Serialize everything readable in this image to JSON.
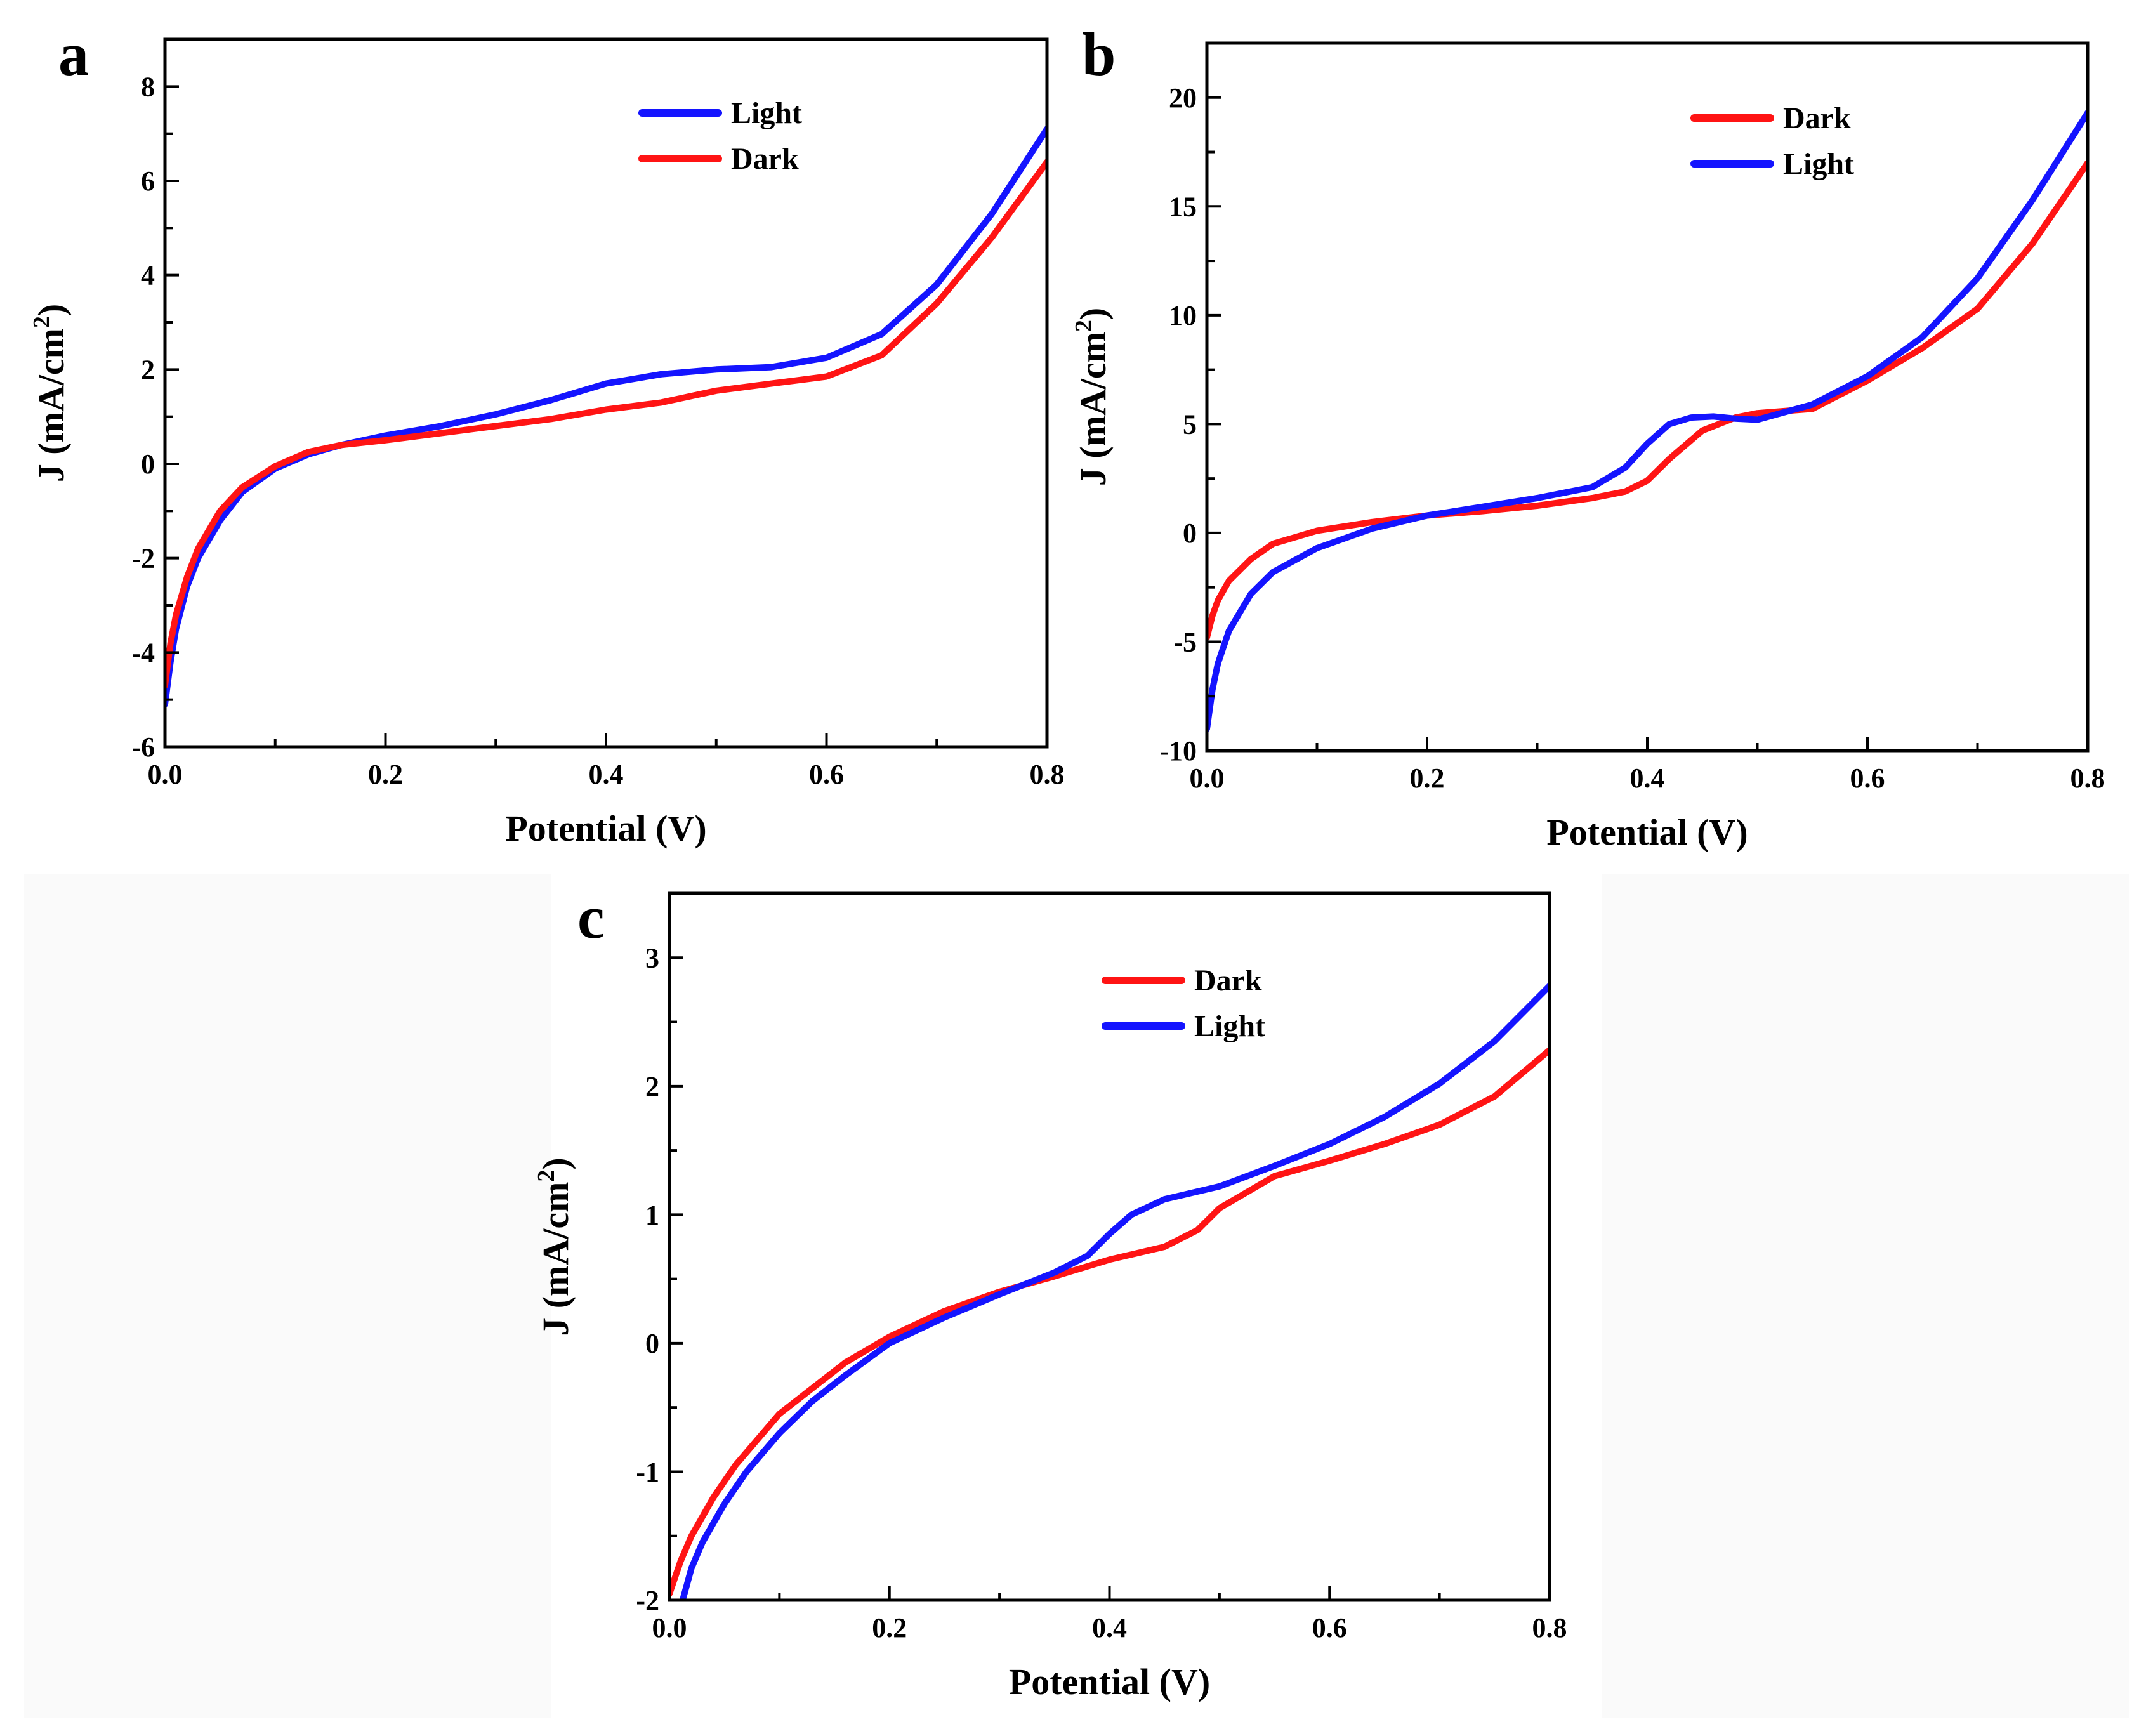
{
  "figure": {
    "background_panel_color": "#fafafa"
  },
  "chart_data": [
    {
      "id": "a",
      "panel_label": "a",
      "type": "line",
      "title": "",
      "xlabel": "Potential (V)",
      "ylabel_main": "J (mA/cm",
      "ylabel_sup": "2",
      "ylabel_close": ")",
      "xlim": [
        0.0,
        0.8
      ],
      "ylim": [
        -6,
        9
      ],
      "xticks": [
        0.0,
        0.2,
        0.4,
        0.6,
        0.8
      ],
      "xtick_labels": [
        "0.0",
        "0.2",
        "0.4",
        "0.6",
        "0.8"
      ],
      "yticks": [
        -6,
        -4,
        -2,
        0,
        2,
        4,
        6,
        8
      ],
      "ytick_labels": [
        "-6",
        "-4",
        "-2",
        "0",
        "2",
        "4",
        "6",
        "8"
      ],
      "legend_position": "top-right",
      "series": [
        {
          "name": "Light",
          "color": "#1414ff",
          "x": [
            0.0,
            0.005,
            0.01,
            0.02,
            0.03,
            0.05,
            0.07,
            0.1,
            0.13,
            0.16,
            0.2,
            0.25,
            0.3,
            0.35,
            0.4,
            0.45,
            0.5,
            0.55,
            0.6,
            0.65,
            0.7,
            0.75,
            0.8
          ],
          "y": [
            -5.1,
            -4.2,
            -3.5,
            -2.6,
            -2.0,
            -1.2,
            -0.6,
            -0.1,
            0.2,
            0.4,
            0.6,
            0.8,
            1.05,
            1.35,
            1.7,
            1.9,
            2.0,
            2.05,
            2.25,
            2.75,
            3.8,
            5.3,
            7.1
          ]
        },
        {
          "name": "Dark",
          "color": "#ff1414",
          "x": [
            0.0,
            0.005,
            0.01,
            0.02,
            0.03,
            0.05,
            0.07,
            0.1,
            0.13,
            0.16,
            0.2,
            0.25,
            0.3,
            0.35,
            0.4,
            0.45,
            0.5,
            0.55,
            0.6,
            0.65,
            0.7,
            0.75,
            0.8
          ],
          "y": [
            -4.7,
            -3.8,
            -3.2,
            -2.4,
            -1.8,
            -1.0,
            -0.5,
            -0.05,
            0.25,
            0.4,
            0.5,
            0.65,
            0.8,
            0.95,
            1.15,
            1.3,
            1.55,
            1.7,
            1.85,
            2.3,
            3.4,
            4.8,
            6.4
          ]
        }
      ]
    },
    {
      "id": "b",
      "panel_label": "b",
      "type": "line",
      "title": "",
      "xlabel": "Potential (V)",
      "ylabel_main": "J (mA/cm",
      "ylabel_sup": "2",
      "ylabel_close": ")",
      "xlim": [
        0.0,
        0.8
      ],
      "ylim": [
        -10,
        22.5
      ],
      "xticks": [
        0.0,
        0.2,
        0.4,
        0.6,
        0.8
      ],
      "xtick_labels": [
        "0.0",
        "0.2",
        "0.4",
        "0.6",
        "0.8"
      ],
      "yticks": [
        -10,
        -5,
        0,
        5,
        10,
        15,
        20
      ],
      "ytick_labels": [
        "-10",
        "-5",
        "0",
        "5",
        "10",
        "15",
        "20"
      ],
      "legend_position": "top-right",
      "series": [
        {
          "name": "Dark",
          "color": "#ff1414",
          "x": [
            0.0,
            0.005,
            0.01,
            0.02,
            0.04,
            0.06,
            0.1,
            0.15,
            0.2,
            0.25,
            0.3,
            0.35,
            0.38,
            0.4,
            0.42,
            0.45,
            0.48,
            0.5,
            0.55,
            0.6,
            0.65,
            0.7,
            0.75,
            0.8
          ],
          "y": [
            -4.8,
            -3.8,
            -3.1,
            -2.2,
            -1.2,
            -0.5,
            0.1,
            0.5,
            0.8,
            1.0,
            1.25,
            1.6,
            1.9,
            2.4,
            3.4,
            4.7,
            5.3,
            5.5,
            5.7,
            7.0,
            8.5,
            10.3,
            13.3,
            17.0
          ]
        },
        {
          "name": "Light",
          "color": "#1414ff",
          "x": [
            0.0,
            0.005,
            0.01,
            0.02,
            0.04,
            0.06,
            0.1,
            0.15,
            0.2,
            0.25,
            0.3,
            0.35,
            0.38,
            0.4,
            0.42,
            0.44,
            0.46,
            0.48,
            0.5,
            0.55,
            0.6,
            0.65,
            0.7,
            0.75,
            0.8
          ],
          "y": [
            -9.0,
            -7.2,
            -6.0,
            -4.5,
            -2.8,
            -1.8,
            -0.7,
            0.2,
            0.8,
            1.2,
            1.6,
            2.1,
            3.0,
            4.1,
            5.0,
            5.3,
            5.35,
            5.25,
            5.2,
            5.9,
            7.2,
            9.0,
            11.7,
            15.3,
            19.3
          ]
        }
      ]
    },
    {
      "id": "c",
      "panel_label": "c",
      "type": "line",
      "title": "",
      "xlabel": "Potential (V)",
      "ylabel_main": "J (mA/cm",
      "ylabel_sup": "2",
      "ylabel_close": ")",
      "xlim": [
        0.0,
        0.8
      ],
      "ylim": [
        -2,
        3.5
      ],
      "xticks": [
        0.0,
        0.2,
        0.4,
        0.6,
        0.8
      ],
      "xtick_labels": [
        "0.0",
        "0.2",
        "0.4",
        "0.6",
        "0.8"
      ],
      "yticks": [
        -2,
        -1,
        0,
        1,
        2,
        3
      ],
      "ytick_labels": [
        "-2",
        "-1",
        "0",
        "1",
        "2",
        "3"
      ],
      "legend_position": "top-center",
      "series": [
        {
          "name": "Dark",
          "color": "#ff1414",
          "x": [
            0.0,
            0.01,
            0.02,
            0.04,
            0.06,
            0.08,
            0.1,
            0.13,
            0.16,
            0.2,
            0.25,
            0.3,
            0.35,
            0.4,
            0.45,
            0.48,
            0.5,
            0.55,
            0.6,
            0.65,
            0.7,
            0.75,
            0.8
          ],
          "y": [
            -1.95,
            -1.7,
            -1.5,
            -1.2,
            -0.95,
            -0.75,
            -0.55,
            -0.35,
            -0.15,
            0.05,
            0.25,
            0.4,
            0.52,
            0.65,
            0.75,
            0.88,
            1.05,
            1.3,
            1.42,
            1.55,
            1.7,
            1.92,
            2.28
          ]
        },
        {
          "name": "Light",
          "color": "#1414ff",
          "x": [
            0.012,
            0.02,
            0.03,
            0.05,
            0.07,
            0.1,
            0.13,
            0.16,
            0.2,
            0.25,
            0.3,
            0.35,
            0.38,
            0.4,
            0.42,
            0.45,
            0.5,
            0.55,
            0.6,
            0.65,
            0.7,
            0.75,
            0.8
          ],
          "y": [
            -2.0,
            -1.75,
            -1.55,
            -1.25,
            -1.0,
            -0.7,
            -0.45,
            -0.25,
            0.0,
            0.2,
            0.38,
            0.55,
            0.68,
            0.85,
            1.0,
            1.12,
            1.22,
            1.38,
            1.55,
            1.76,
            2.02,
            2.35,
            2.78
          ]
        }
      ]
    }
  ]
}
